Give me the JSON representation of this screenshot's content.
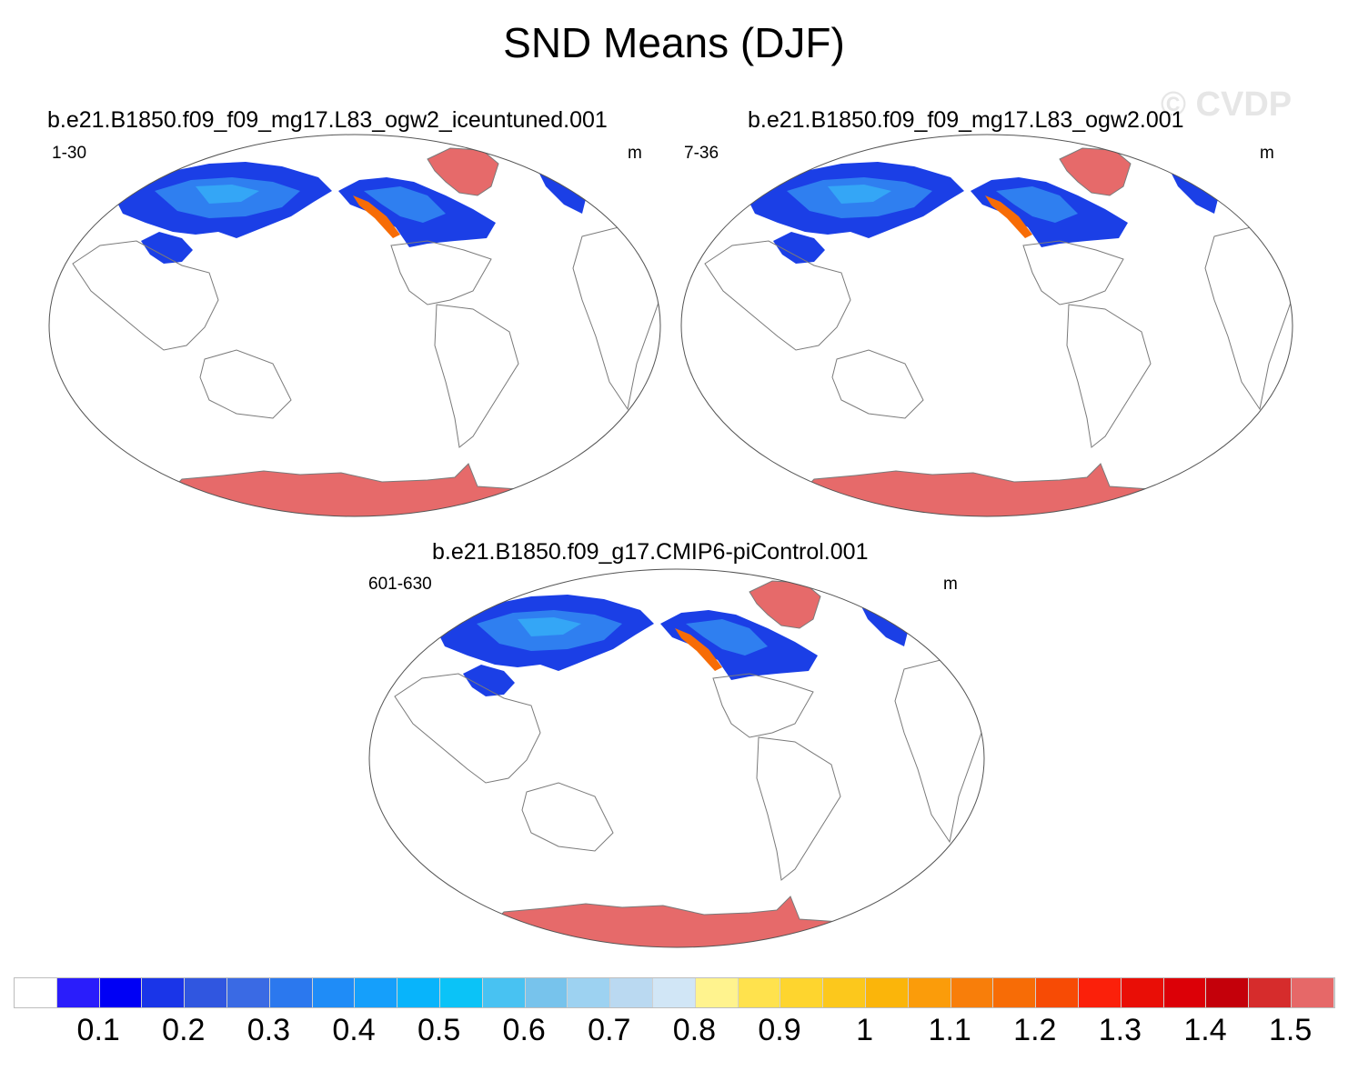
{
  "title": "SND Means (DJF)",
  "watermark": "© CVDP",
  "panels": [
    {
      "title": "b.e21.B1850.f09_f09_mg17.L83_ogw2_iceuntuned.001",
      "years": "1-30",
      "units": "m"
    },
    {
      "title": "b.e21.B1850.f09_f09_mg17.L83_ogw2.001",
      "years": "7-36",
      "units": "m"
    },
    {
      "title": "b.e21.B1850.f09_g17.CMIP6-piControl.001",
      "years": "601-630",
      "units": "m"
    }
  ],
  "colorbar": {
    "colors": [
      "#ffffff",
      "#2a1dfb",
      "#0000f5",
      "#1a35e8",
      "#3056e0",
      "#3a6ae4",
      "#2b78ee",
      "#1f8cf7",
      "#159ffb",
      "#08b4fb",
      "#0bc3f7",
      "#48c2f2",
      "#77c3ec",
      "#9dd2f1",
      "#bad9f1",
      "#d1e6f6",
      "#fff38e",
      "#ffe24d",
      "#fed52e",
      "#fcc81c",
      "#fbb50a",
      "#fb9c0a",
      "#f87e0a",
      "#f76c06",
      "#f74b05",
      "#fb200a",
      "#e90e06",
      "#dc0007",
      "#c4000a",
      "#d62c2c",
      "#e66868"
    ],
    "labels": [
      "0.1",
      "0.2",
      "0.3",
      "0.4",
      "0.5",
      "0.6",
      "0.7",
      "0.8",
      "0.9",
      "1",
      "1.1",
      "1.2",
      "1.3",
      "1.4",
      "1.5"
    ]
  },
  "map_colors": {
    "coast": "#7a7a7a",
    "ice": "#e66a6a",
    "snow_deep": "#1b3fe6",
    "snow_mid": "#2f7ff0",
    "snow_light": "#34a6f6",
    "snow_high": "#f76c06"
  }
}
